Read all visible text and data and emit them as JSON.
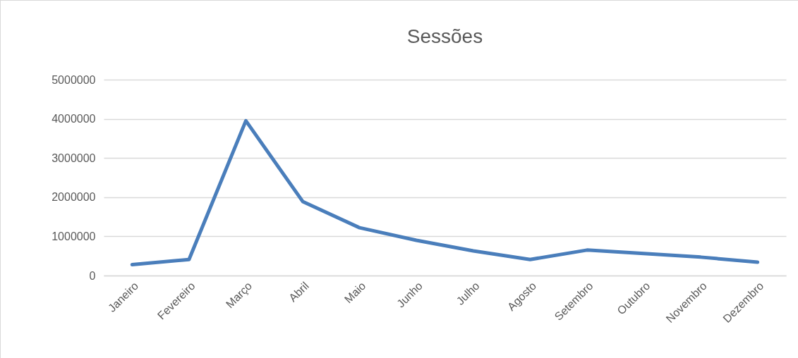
{
  "chart_data": {
    "type": "line",
    "title": "Sessões",
    "categories": [
      "Janeiro",
      "Fevereiro",
      "Março",
      "Abril",
      "Maio",
      "Junho",
      "Julho",
      "Agosto",
      "Setembro",
      "Outubro",
      "Novembro",
      "Dezembro"
    ],
    "series": [
      {
        "color": "#4a7ebb",
        "values": [
          280000,
          410000,
          3950000,
          1890000,
          1220000,
          900000,
          630000,
          410000,
          650000,
          560000,
          470000,
          340000
        ]
      }
    ],
    "ylim": [
      0,
      5000000
    ],
    "yticks": [
      0,
      1000000,
      2000000,
      3000000,
      4000000,
      5000000
    ],
    "grid": "y",
    "legend": false,
    "marker": "none",
    "line_style": "solid"
  }
}
